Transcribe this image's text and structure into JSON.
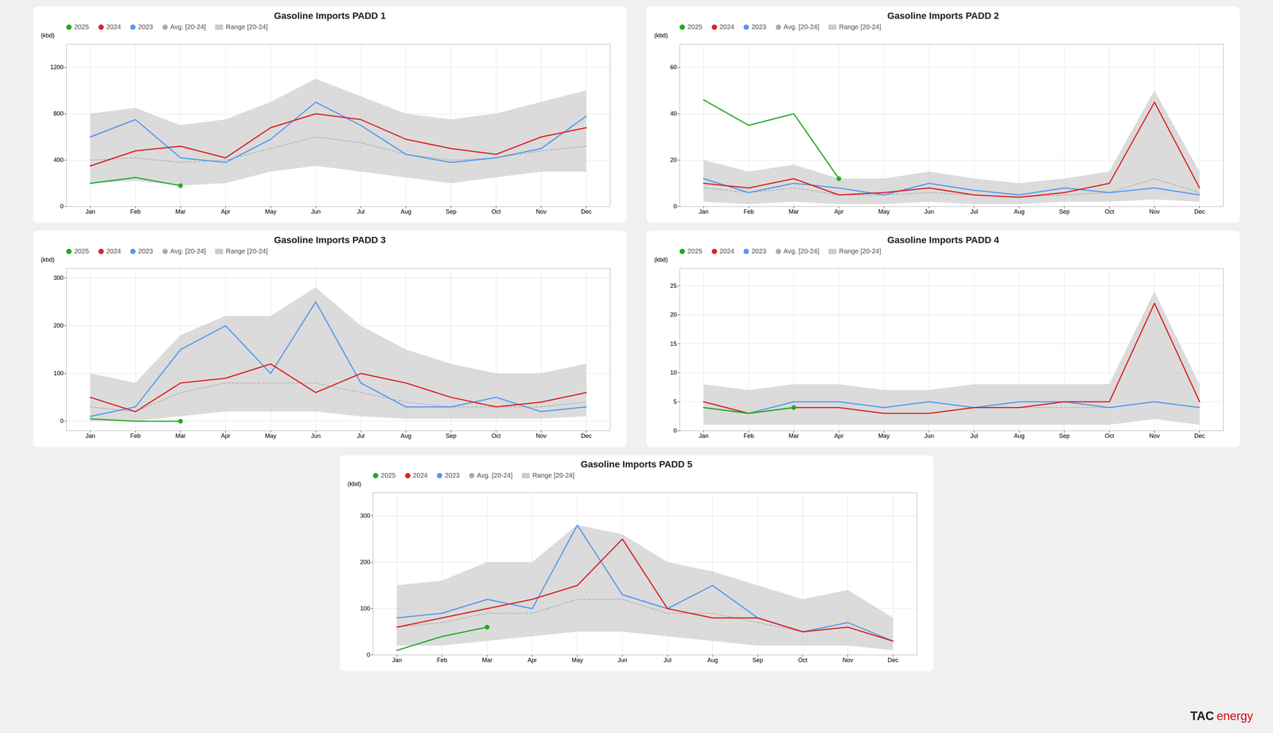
{
  "chart_data": [
    {
      "type": "line",
      "title": "Gasoline Imports PADD 1",
      "y_label": "(kbd)",
      "categories": [
        "Jan",
        "Feb",
        "Mar",
        "Apr",
        "May",
        "Jun",
        "Jul",
        "Aug",
        "Sep",
        "Oct",
        "Nov",
        "Dec"
      ],
      "series": [
        {
          "name": "2025",
          "color": "#22aa22",
          "marker": "o",
          "values": [
            200,
            250,
            180,
            null,
            null,
            null,
            null,
            null,
            null,
            null,
            null,
            null
          ]
        },
        {
          "name": "2024",
          "color": "#dd2222",
          "values": [
            350,
            480,
            520,
            420,
            680,
            800,
            750,
            580,
            500,
            450,
            600,
            680
          ]
        },
        {
          "name": "2023",
          "color": "#5599ee",
          "values": [
            600,
            750,
            420,
            380,
            580,
            900,
            700,
            450,
            380,
            420,
            500,
            780
          ]
        },
        {
          "name": "Avg. [20-24]",
          "color": "#aaaaaa",
          "line_style": "dashed",
          "values": [
            400,
            420,
            380,
            400,
            500,
            600,
            550,
            450,
            400,
            420,
            480,
            520
          ]
        },
        {
          "name": "Range [20-24]",
          "type": "area",
          "color": "#cccccc",
          "lower": [
            200,
            220,
            180,
            200,
            300,
            350,
            300,
            250,
            200,
            250,
            300,
            300
          ],
          "upper": [
            800,
            850,
            700,
            750,
            900,
            1100,
            950,
            800,
            750,
            800,
            900,
            1000
          ]
        }
      ],
      "ylim": [
        0,
        1400
      ],
      "yticks": [
        0,
        400,
        800,
        1200
      ],
      "grid": true,
      "legend": "upper left"
    },
    {
      "type": "line",
      "title": "Gasoline Imports PADD 2",
      "y_label": "(kbd)",
      "categories": [
        "Jan",
        "Feb",
        "Mar",
        "Apr",
        "May",
        "Jun",
        "Jul",
        "Aug",
        "Sep",
        "Oct",
        "Nov",
        "Dec"
      ],
      "series": [
        {
          "name": "2025",
          "color": "#22aa22",
          "marker": "o",
          "values": [
            46,
            35,
            40,
            12,
            null,
            null,
            null,
            null,
            null,
            null,
            null,
            null
          ]
        },
        {
          "name": "2024",
          "color": "#dd2222",
          "values": [
            10,
            8,
            12,
            5,
            6,
            8,
            5,
            4,
            6,
            10,
            45,
            8
          ]
        },
        {
          "name": "2023",
          "color": "#5599ee",
          "values": [
            12,
            6,
            10,
            8,
            5,
            10,
            7,
            5,
            8,
            6,
            8,
            5
          ]
        },
        {
          "name": "Avg. [20-24]",
          "color": "#aaaaaa",
          "line_style": "dashed",
          "values": [
            8,
            6,
            8,
            5,
            5,
            6,
            5,
            4,
            5,
            6,
            12,
            6
          ]
        },
        {
          "name": "Range [20-24]",
          "type": "area",
          "color": "#cccccc",
          "lower": [
            2,
            1,
            2,
            1,
            1,
            2,
            1,
            1,
            2,
            2,
            3,
            2
          ],
          "upper": [
            20,
            15,
            18,
            12,
            12,
            15,
            12,
            10,
            12,
            15,
            50,
            15
          ]
        }
      ],
      "ylim": [
        0,
        70
      ],
      "yticks": [
        0,
        20,
        40,
        60
      ],
      "grid": true,
      "legend": "upper left"
    },
    {
      "type": "line",
      "title": "Gasoline Imports PADD 3",
      "y_label": "(kbd)",
      "categories": [
        "Jan",
        "Feb",
        "Mar",
        "Apr",
        "May",
        "Jun",
        "Jul",
        "Aug",
        "Sep",
        "Oct",
        "Nov",
        "Dec"
      ],
      "series": [
        {
          "name": "2025",
          "color": "#22aa22",
          "marker": "o",
          "values": [
            5,
            0,
            0,
            null,
            null,
            null,
            null,
            null,
            null,
            null,
            null,
            null
          ]
        },
        {
          "name": "2024",
          "color": "#dd2222",
          "values": [
            50,
            20,
            80,
            90,
            120,
            60,
            100,
            80,
            50,
            30,
            40,
            60
          ]
        },
        {
          "name": "2023",
          "color": "#5599ee",
          "values": [
            10,
            30,
            150,
            200,
            100,
            250,
            80,
            30,
            30,
            50,
            20,
            30
          ]
        },
        {
          "name": "Avg. [20-24]",
          "color": "#aaaaaa",
          "line_style": "dashed",
          "values": [
            30,
            20,
            60,
            80,
            80,
            80,
            60,
            40,
            30,
            30,
            30,
            40
          ]
        },
        {
          "name": "Range [20-24]",
          "type": "area",
          "color": "#cccccc",
          "lower": [
            0,
            0,
            10,
            20,
            20,
            20,
            10,
            5,
            5,
            5,
            5,
            10
          ],
          "upper": [
            100,
            80,
            180,
            220,
            220,
            280,
            200,
            150,
            120,
            100,
            100,
            120
          ]
        }
      ],
      "ylim": [
        -20,
        320
      ],
      "yticks": [
        0,
        100,
        200,
        300
      ],
      "grid": true,
      "legend": "upper left"
    },
    {
      "type": "line",
      "title": "Gasoline Imports PADD 4",
      "y_label": "(kbd)",
      "categories": [
        "Jan",
        "Feb",
        "Mar",
        "Apr",
        "May",
        "Jun",
        "Jul",
        "Aug",
        "Sep",
        "Oct",
        "Nov",
        "Dec"
      ],
      "series": [
        {
          "name": "2025",
          "color": "#22aa22",
          "marker": "o",
          "values": [
            4,
            3,
            4,
            null,
            null,
            null,
            null,
            null,
            null,
            null,
            null,
            null
          ]
        },
        {
          "name": "2024",
          "color": "#dd2222",
          "values": [
            5,
            3,
            4,
            4,
            3,
            3,
            4,
            4,
            5,
            5,
            22,
            5
          ]
        },
        {
          "name": "2023",
          "color": "#5599ee",
          "values": [
            4,
            3,
            5,
            5,
            4,
            5,
            4,
            5,
            5,
            4,
            5,
            4
          ]
        },
        {
          "name": "Avg. [20-24]",
          "color": "#aaaaaa",
          "line_style": "dashed",
          "values": [
            4,
            3,
            4,
            4,
            3,
            3,
            4,
            4,
            4,
            4,
            5,
            4
          ]
        },
        {
          "name": "Range [20-24]",
          "type": "area",
          "color": "#cccccc",
          "lower": [
            1,
            1,
            1,
            1,
            1,
            1,
            1,
            1,
            1,
            1,
            2,
            1
          ],
          "upper": [
            8,
            7,
            8,
            8,
            7,
            7,
            8,
            8,
            8,
            8,
            24,
            8
          ]
        }
      ],
      "ylim": [
        0,
        28
      ],
      "yticks": [
        0,
        5,
        10,
        15,
        20,
        25
      ],
      "grid": true,
      "legend": "upper left"
    },
    {
      "type": "line",
      "title": "Gasoline Imports PADD 5",
      "y_label": "(kbd)",
      "categories": [
        "Jan",
        "Feb",
        "Mar",
        "Apr",
        "May",
        "Jun",
        "Jul",
        "Aug",
        "Sep",
        "Oct",
        "Nov",
        "Dec"
      ],
      "series": [
        {
          "name": "2025",
          "color": "#22aa22",
          "marker": "o",
          "values": [
            10,
            40,
            60,
            null,
            null,
            null,
            null,
            null,
            null,
            null,
            null,
            null
          ]
        },
        {
          "name": "2024",
          "color": "#dd2222",
          "values": [
            60,
            80,
            100,
            120,
            150,
            250,
            100,
            80,
            80,
            50,
            60,
            30
          ]
        },
        {
          "name": "2023",
          "color": "#5599ee",
          "values": [
            80,
            90,
            120,
            100,
            280,
            130,
            100,
            150,
            80,
            50,
            70,
            30
          ]
        },
        {
          "name": "Avg. [20-24]",
          "color": "#aaaaaa",
          "line_style": "dashed",
          "values": [
            60,
            70,
            90,
            90,
            120,
            120,
            90,
            90,
            70,
            50,
            60,
            30
          ]
        },
        {
          "name": "Range [20-24]",
          "type": "area",
          "color": "#cccccc",
          "lower": [
            20,
            20,
            30,
            40,
            50,
            50,
            40,
            30,
            20,
            20,
            20,
            10
          ],
          "upper": [
            150,
            160,
            200,
            200,
            280,
            260,
            200,
            180,
            150,
            120,
            140,
            80
          ]
        }
      ],
      "ylim": [
        0,
        350
      ],
      "yticks": [
        0,
        100,
        200,
        300
      ],
      "grid": true,
      "legend": "upper left",
      "annotations": [
        {
          "text": "TAC",
          "color": "#222222"
        },
        {
          "text": "energy",
          "color": "#cc1111"
        }
      ]
    }
  ]
}
